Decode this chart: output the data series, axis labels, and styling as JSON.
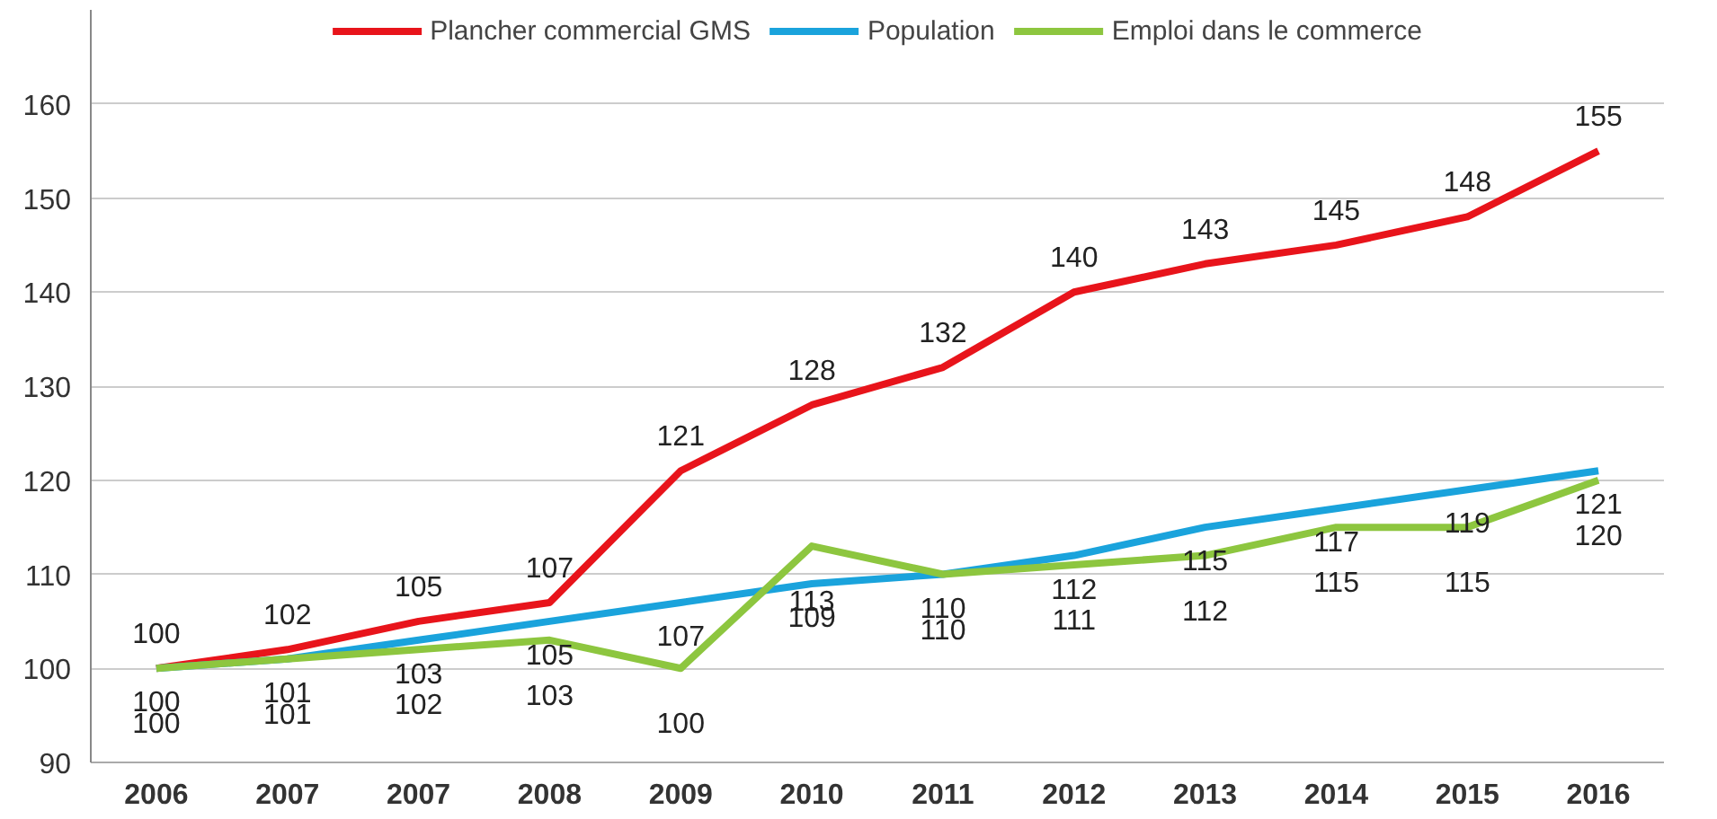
{
  "chart_data": {
    "type": "line",
    "categories": [
      "2006",
      "2007",
      "2007",
      "2008",
      "2009",
      "2010",
      "2011",
      "2012",
      "2013",
      "2014",
      "2015",
      "2016"
    ],
    "series": [
      {
        "name": "Plancher commercial GMS",
        "color": "#e8141b",
        "values": [
          100,
          102,
          105,
          107,
          121,
          128,
          132,
          140,
          143,
          145,
          148,
          155
        ]
      },
      {
        "name": "Population",
        "color": "#1aa3dc",
        "values": [
          100,
          101,
          103,
          105,
          107,
          109,
          110,
          112,
          115,
          117,
          119,
          121
        ]
      },
      {
        "name": "Emploi dans le commerce",
        "color": "#8dc63f",
        "values": [
          100,
          101,
          102,
          103,
          100,
          113,
          110,
          111,
          112,
          115,
          115,
          120
        ]
      }
    ],
    "ylim": [
      90,
      170
    ],
    "yticks": [
      90,
      100,
      110,
      120,
      130,
      140,
      150,
      160
    ],
    "grid": "y",
    "legend": "top",
    "data_labels": true,
    "marker": "none",
    "line_style": "solid"
  }
}
